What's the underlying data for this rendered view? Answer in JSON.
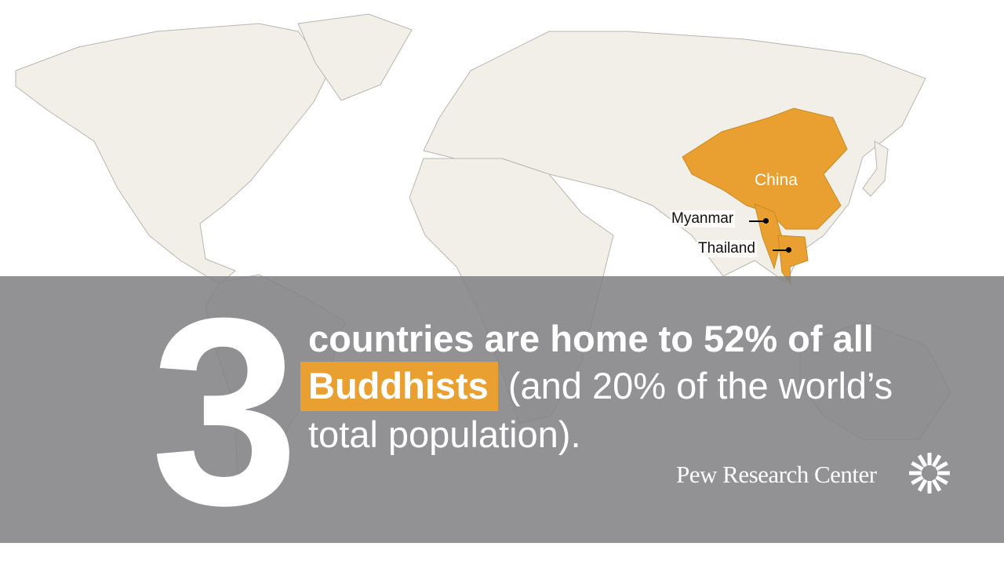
{
  "colors": {
    "accent": "#e9a030",
    "land": "#f2efe8",
    "overlay": "#808083"
  },
  "map": {
    "highlighted_countries": [
      "China",
      "Myanmar",
      "Thailand"
    ],
    "labels": {
      "china": "China",
      "myanmar": "Myanmar",
      "thailand": "Thailand"
    }
  },
  "headline": {
    "number": "3",
    "line1": "countries are home to 52% of all",
    "highlight": "Buddhists",
    "line2_rest": "(and 20% of the world’s",
    "line3": "total population)."
  },
  "branding": {
    "logo_text": "Pew Research Center",
    "logo_icon": "sunburst-icon"
  }
}
